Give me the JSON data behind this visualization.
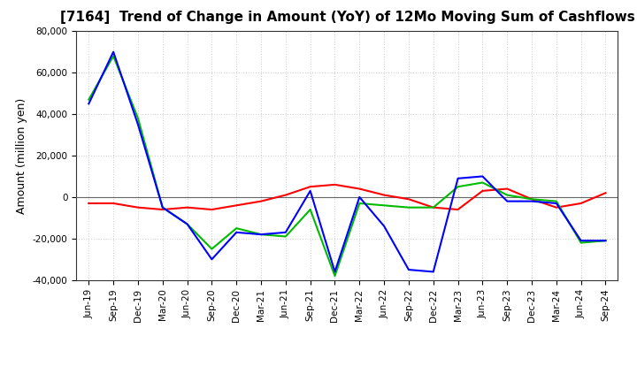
{
  "title": "[7164]  Trend of Change in Amount (YoY) of 12Mo Moving Sum of Cashflows",
  "ylabel": "Amount (million yen)",
  "x_labels": [
    "Jun-19",
    "Sep-19",
    "Dec-19",
    "Mar-20",
    "Jun-20",
    "Sep-20",
    "Dec-20",
    "Mar-21",
    "Jun-21",
    "Sep-21",
    "Dec-21",
    "Mar-22",
    "Jun-22",
    "Sep-22",
    "Dec-22",
    "Mar-23",
    "Jun-23",
    "Sep-23",
    "Dec-23",
    "Mar-24",
    "Jun-24",
    "Sep-24"
  ],
  "operating": [
    -3000,
    -3000,
    -5000,
    -6000,
    -5000,
    -6000,
    -4000,
    -2000,
    1000,
    5000,
    6000,
    4000,
    1000,
    -1000,
    -5000,
    -6000,
    3000,
    4000,
    -1000,
    -5000,
    -3000,
    2000
  ],
  "investing": [
    47000,
    68000,
    38000,
    -5000,
    -13000,
    -25000,
    -15000,
    -18000,
    -19000,
    -6000,
    -38000,
    -3000,
    -4000,
    -5000,
    -5000,
    5000,
    7000,
    1000,
    -1000,
    -2000,
    -22000,
    -21000
  ],
  "free": [
    45000,
    70000,
    35000,
    -5000,
    -13000,
    -30000,
    -17000,
    -18000,
    -17000,
    3000,
    -36000,
    0,
    -14000,
    -35000,
    -36000,
    9000,
    10000,
    -2000,
    -2000,
    -3000,
    -21000,
    -21000
  ],
  "ylim": [
    -40000,
    80000
  ],
  "yticks": [
    -40000,
    -20000,
    0,
    20000,
    40000,
    60000,
    80000
  ],
  "operating_color": "#ff0000",
  "investing_color": "#00bb00",
  "free_color": "#0000ff",
  "bg_color": "#ffffff",
  "plot_bg_color": "#ffffff",
  "grid_color": "#999999",
  "zero_line_color": "#666666",
  "title_fontsize": 11,
  "axis_label_fontsize": 9,
  "tick_fontsize": 7.5,
  "legend_fontsize": 9
}
